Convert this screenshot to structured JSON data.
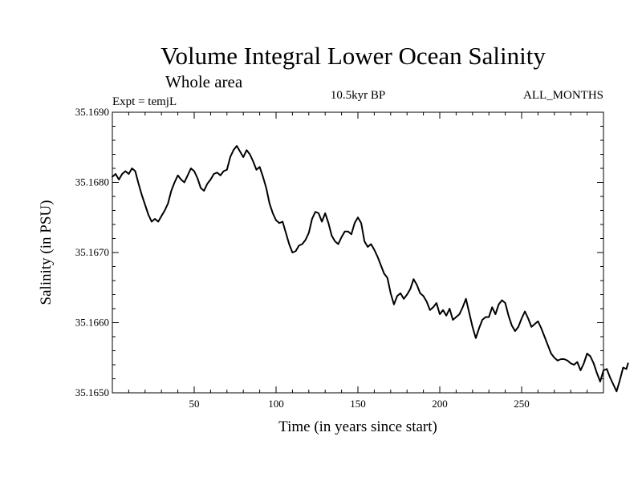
{
  "chart_data": {
    "type": "line",
    "title": "Volume Integral Lower Ocean Salinity",
    "subtitle": "Whole area",
    "experiment": "Expt = temjL",
    "period": "10.5kyr BP",
    "months": "ALL_MONTHS",
    "xlabel": "Time (in years since start)",
    "ylabel": "Salinity (in PSU)",
    "xlim": [
      0,
      300
    ],
    "ylim": [
      35.165,
      35.169
    ],
    "xticks": [
      50,
      100,
      150,
      200,
      250
    ],
    "yticks": [
      35.165,
      35.166,
      35.167,
      35.168,
      35.169
    ],
    "ytick_labels": [
      "35.1650",
      "35.1660",
      "35.1670",
      "35.1680",
      "35.1690"
    ],
    "line_color": "#000000",
    "series": [
      {
        "name": "salinity",
        "points": [
          [
            0,
            35.16808
          ],
          [
            2,
            35.16812
          ],
          [
            4,
            35.16804
          ],
          [
            6,
            35.16812
          ],
          [
            8,
            35.16816
          ],
          [
            10,
            35.16812
          ],
          [
            12,
            35.1682
          ],
          [
            14,
            35.16816
          ],
          [
            16,
            35.16798
          ],
          [
            18,
            35.16782
          ],
          [
            20,
            35.16768
          ],
          [
            22,
            35.16754
          ],
          [
            24,
            35.16744
          ],
          [
            26,
            35.16748
          ],
          [
            28,
            35.16744
          ],
          [
            30,
            35.16752
          ],
          [
            32,
            35.1676
          ],
          [
            34,
            35.1677
          ],
          [
            36,
            35.16788
          ],
          [
            38,
            35.168
          ],
          [
            40,
            35.1681
          ],
          [
            42,
            35.16804
          ],
          [
            44,
            35.168
          ],
          [
            46,
            35.1681
          ],
          [
            48,
            35.1682
          ],
          [
            50,
            35.16816
          ],
          [
            52,
            35.16806
          ],
          [
            54,
            35.16792
          ],
          [
            56,
            35.16788
          ],
          [
            58,
            35.16798
          ],
          [
            60,
            35.16804
          ],
          [
            62,
            35.16812
          ],
          [
            64,
            35.16814
          ],
          [
            66,
            35.1681
          ],
          [
            68,
            35.16816
          ],
          [
            70,
            35.16818
          ],
          [
            72,
            35.16836
          ],
          [
            74,
            35.16846
          ],
          [
            76,
            35.16852
          ],
          [
            78,
            35.16844
          ],
          [
            80,
            35.16836
          ],
          [
            82,
            35.16846
          ],
          [
            84,
            35.1684
          ],
          [
            86,
            35.1683
          ],
          [
            88,
            35.16818
          ],
          [
            90,
            35.16822
          ],
          [
            92,
            35.16808
          ],
          [
            94,
            35.16792
          ],
          [
            96,
            35.1677
          ],
          [
            98,
            35.16756
          ],
          [
            100,
            35.16746
          ],
          [
            102,
            35.16742
          ],
          [
            104,
            35.16744
          ],
          [
            106,
            35.16728
          ],
          [
            108,
            35.16712
          ],
          [
            110,
            35.167
          ],
          [
            112,
            35.16702
          ],
          [
            114,
            35.1671
          ],
          [
            116,
            35.16712
          ],
          [
            118,
            35.16718
          ],
          [
            120,
            35.16728
          ],
          [
            122,
            35.16748
          ],
          [
            124,
            35.16758
          ],
          [
            126,
            35.16756
          ],
          [
            128,
            35.16744
          ],
          [
            130,
            35.16756
          ],
          [
            132,
            35.16742
          ],
          [
            134,
            35.16724
          ],
          [
            136,
            35.16716
          ],
          [
            138,
            35.16712
          ],
          [
            140,
            35.16722
          ],
          [
            142,
            35.1673
          ],
          [
            144,
            35.1673
          ],
          [
            146,
            35.16726
          ],
          [
            148,
            35.16742
          ],
          [
            150,
            35.1675
          ],
          [
            152,
            35.16742
          ],
          [
            154,
            35.16716
          ],
          [
            156,
            35.16708
          ],
          [
            158,
            35.16712
          ],
          [
            160,
            35.16704
          ],
          [
            162,
            35.16694
          ],
          [
            164,
            35.16682
          ],
          [
            166,
            35.1667
          ],
          [
            168,
            35.16664
          ],
          [
            170,
            35.16642
          ],
          [
            172,
            35.16626
          ],
          [
            174,
            35.16638
          ],
          [
            176,
            35.16642
          ],
          [
            178,
            35.16634
          ],
          [
            180,
            35.1664
          ],
          [
            182,
            35.16648
          ],
          [
            184,
            35.16662
          ],
          [
            186,
            35.16654
          ],
          [
            188,
            35.16642
          ],
          [
            190,
            35.16638
          ],
          [
            192,
            35.1663
          ],
          [
            194,
            35.16618
          ],
          [
            196,
            35.16622
          ],
          [
            198,
            35.16628
          ],
          [
            200,
            35.16612
          ],
          [
            202,
            35.16618
          ],
          [
            204,
            35.1661
          ],
          [
            206,
            35.1662
          ],
          [
            208,
            35.16604
          ],
          [
            210,
            35.16608
          ],
          [
            212,
            35.16612
          ],
          [
            214,
            35.16622
          ],
          [
            216,
            35.16634
          ],
          [
            218,
            35.16614
          ],
          [
            220,
            35.16594
          ],
          [
            222,
            35.16578
          ],
          [
            224,
            35.16592
          ],
          [
            226,
            35.16604
          ],
          [
            228,
            35.16608
          ],
          [
            230,
            35.16608
          ],
          [
            232,
            35.16622
          ],
          [
            234,
            35.16612
          ],
          [
            236,
            35.16626
          ],
          [
            238,
            35.16632
          ],
          [
            240,
            35.16628
          ],
          [
            242,
            35.1661
          ],
          [
            244,
            35.16596
          ],
          [
            246,
            35.16588
          ],
          [
            248,
            35.16594
          ],
          [
            250,
            35.16606
          ],
          [
            252,
            35.16616
          ],
          [
            254,
            35.16606
          ],
          [
            256,
            35.16594
          ],
          [
            258,
            35.16598
          ],
          [
            260,
            35.16602
          ],
          [
            262,
            35.16592
          ],
          [
            264,
            35.1658
          ],
          [
            266,
            35.16568
          ],
          [
            268,
            35.16556
          ],
          [
            270,
            35.1655
          ],
          [
            272,
            35.16546
          ],
          [
            274,
            35.16548
          ],
          [
            276,
            35.16548
          ],
          [
            278,
            35.16546
          ],
          [
            280,
            35.16542
          ],
          [
            282,
            35.1654
          ],
          [
            284,
            35.16544
          ],
          [
            286,
            35.16532
          ],
          [
            288,
            35.16542
          ],
          [
            290,
            35.16556
          ],
          [
            292,
            35.16552
          ],
          [
            294,
            35.16542
          ],
          [
            296,
            35.16528
          ],
          [
            298,
            35.16516
          ],
          [
            300,
            35.16532
          ],
          [
            302,
            35.16534
          ],
          [
            304,
            35.16522
          ],
          [
            306,
            35.16512
          ],
          [
            308,
            35.16502
          ],
          [
            310,
            35.16518
          ],
          [
            312,
            35.16536
          ],
          [
            314,
            35.16534
          ],
          [
            315,
            35.16542
          ]
        ]
      }
    ]
  }
}
